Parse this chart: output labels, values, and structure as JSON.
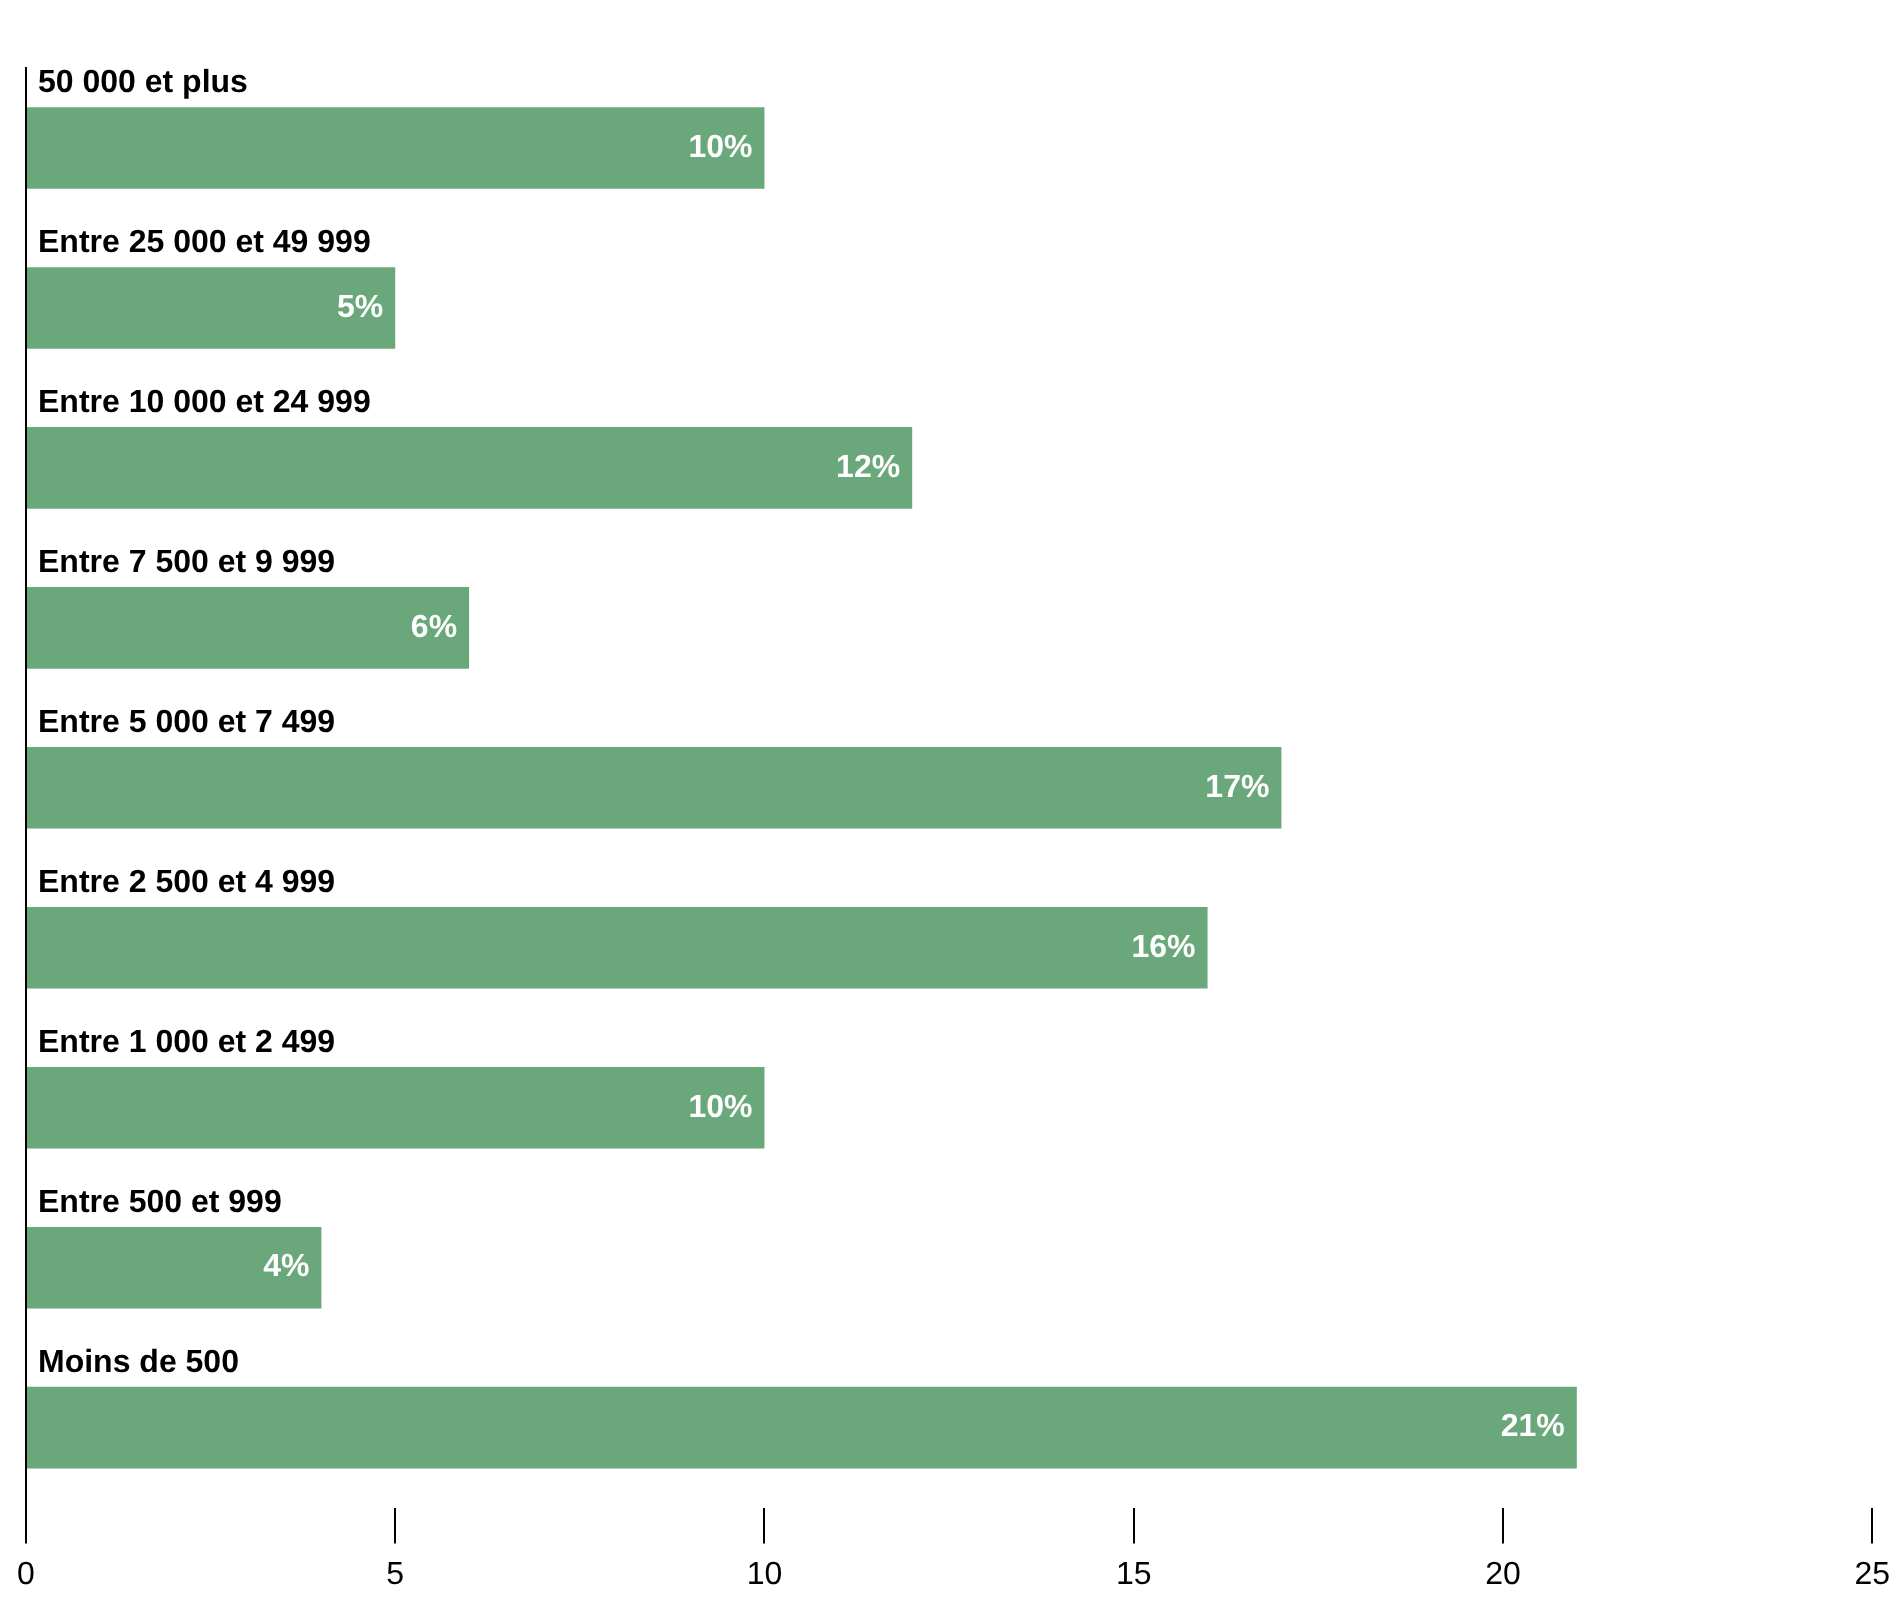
{
  "chart_data": {
    "type": "bar",
    "orientation": "horizontal",
    "categories": [
      "50 000 et plus",
      "Entre 25 000 et 49 999",
      "Entre 10 000 et 24 999",
      "Entre 7 500 et 9 999",
      "Entre 5 000 et 7 499",
      "Entre 2 500 et 4 999",
      "Entre 1 000 et 2 499",
      "Entre 500 et 999",
      "Moins de 500"
    ],
    "values": [
      10,
      5,
      12,
      6,
      17,
      16,
      10,
      4,
      21
    ],
    "value_labels": [
      "10%",
      "5%",
      "12%",
      "6%",
      "17%",
      "16%",
      "10%",
      "4%",
      "21%"
    ],
    "color": "#6aa87c",
    "xlim": [
      0,
      25
    ],
    "xticks": [
      0,
      5,
      10,
      15,
      20,
      25
    ],
    "grid": false,
    "legend": false
  }
}
